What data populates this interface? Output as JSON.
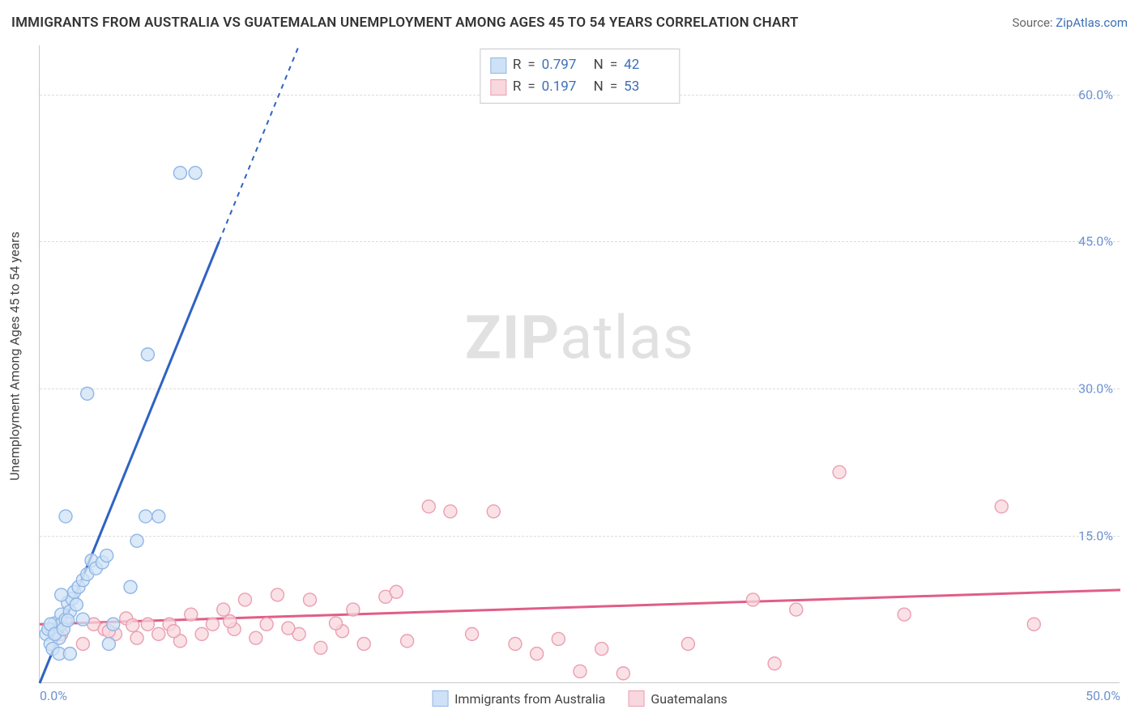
{
  "title": "IMMIGRANTS FROM AUSTRALIA VS GUATEMALAN UNEMPLOYMENT AMONG AGES 45 TO 54 YEARS CORRELATION CHART",
  "source_prefix": "Source: ",
  "source_link": "ZipAtlas.com",
  "yaxis_label": "Unemployment Among Ages 45 to 54 years",
  "watermark": {
    "bold": "ZIP",
    "rest": "atlas"
  },
  "chart": {
    "type": "scatter-regression",
    "xlim": [
      0,
      50
    ],
    "ylim": [
      0,
      65
    ],
    "x_ticks": [
      0.0,
      50.0
    ],
    "x_tick_labels": [
      "0.0%",
      "50.0%"
    ],
    "y_ticks": [
      15.0,
      30.0,
      45.0,
      60.0
    ],
    "y_tick_labels": [
      "15.0%",
      "30.0%",
      "45.0%",
      "60.0%"
    ],
    "grid_color": "#dcdcdc",
    "marker_radius": 8,
    "marker_stroke_width": 1.4,
    "reg_line_width": 3,
    "dash_pattern": "6,6",
    "background_color": "#ffffff",
    "series": [
      {
        "key": "A",
        "label": "Immigrants from Australia",
        "fill": "#cfe1f6",
        "stroke": "#8fb6e6",
        "line_color": "#2f62c4",
        "R": "0.797",
        "N": "42",
        "points": [
          [
            0.3,
            5.0
          ],
          [
            0.5,
            4.0
          ],
          [
            0.6,
            5.4
          ],
          [
            0.7,
            6.1
          ],
          [
            0.8,
            5.2
          ],
          [
            0.9,
            4.6
          ],
          [
            1.0,
            7.0
          ],
          [
            1.0,
            6.0
          ],
          [
            1.2,
            6.5
          ],
          [
            1.3,
            8.2
          ],
          [
            1.4,
            7.3
          ],
          [
            1.5,
            8.6
          ],
          [
            1.6,
            9.3
          ],
          [
            1.8,
            9.8
          ],
          [
            2.0,
            10.5
          ],
          [
            2.2,
            11.1
          ],
          [
            2.4,
            12.5
          ],
          [
            2.6,
            11.7
          ],
          [
            2.9,
            12.3
          ],
          [
            3.1,
            13.0
          ],
          [
            1.2,
            17.0
          ],
          [
            1.0,
            9.0
          ],
          [
            0.6,
            3.5
          ],
          [
            0.9,
            3.0
          ],
          [
            1.4,
            3.0
          ],
          [
            3.2,
            4.0
          ],
          [
            3.4,
            6.0
          ],
          [
            4.2,
            9.8
          ],
          [
            4.5,
            14.5
          ],
          [
            4.9,
            17.0
          ],
          [
            5.5,
            17.0
          ],
          [
            2.2,
            29.5
          ],
          [
            5.0,
            33.5
          ],
          [
            6.5,
            52.0
          ],
          [
            7.2,
            52.0
          ],
          [
            0.4,
            5.5
          ],
          [
            0.5,
            6.0
          ],
          [
            0.7,
            5.0
          ],
          [
            1.1,
            5.5
          ],
          [
            1.3,
            6.4
          ],
          [
            1.7,
            8.0
          ],
          [
            2.0,
            6.5
          ]
        ],
        "reg": {
          "x1": 0.0,
          "y1": 0.0,
          "x2": 8.3,
          "y2": 45.0,
          "dash_from_y": 45.0,
          "x3": 12.0,
          "y3": 65.0
        }
      },
      {
        "key": "B",
        "label": "Guatemalans",
        "fill": "#f8d7de",
        "stroke": "#ea9fb1",
        "line_color": "#e05e86",
        "R": "0.197",
        "N": "53",
        "points": [
          [
            1.0,
            5.0
          ],
          [
            2.0,
            4.0
          ],
          [
            2.5,
            6.0
          ],
          [
            3.0,
            5.5
          ],
          [
            3.5,
            5.0
          ],
          [
            4.0,
            6.6
          ],
          [
            4.5,
            4.6
          ],
          [
            5.0,
            6.0
          ],
          [
            5.5,
            5.0
          ],
          [
            6.0,
            6.0
          ],
          [
            6.5,
            4.3
          ],
          [
            7.0,
            7.0
          ],
          [
            7.5,
            5.0
          ],
          [
            8.0,
            6.0
          ],
          [
            8.5,
            7.5
          ],
          [
            9.0,
            5.5
          ],
          [
            9.5,
            8.5
          ],
          [
            10.0,
            4.6
          ],
          [
            10.5,
            6.0
          ],
          [
            11.0,
            9.0
          ],
          [
            12.0,
            5.0
          ],
          [
            12.5,
            8.5
          ],
          [
            13.0,
            3.6
          ],
          [
            14.0,
            5.3
          ],
          [
            14.5,
            7.5
          ],
          [
            15.0,
            4.0
          ],
          [
            16.0,
            8.8
          ],
          [
            16.5,
            9.3
          ],
          [
            17.0,
            4.3
          ],
          [
            18.0,
            18.0
          ],
          [
            19.0,
            17.5
          ],
          [
            20.0,
            5.0
          ],
          [
            21.0,
            17.5
          ],
          [
            22.0,
            4.0
          ],
          [
            23.0,
            3.0
          ],
          [
            24.0,
            4.5
          ],
          [
            25.0,
            1.2
          ],
          [
            26.0,
            3.5
          ],
          [
            27.0,
            1.0
          ],
          [
            30.0,
            4.0
          ],
          [
            33.0,
            8.5
          ],
          [
            34.0,
            2.0
          ],
          [
            35.0,
            7.5
          ],
          [
            37.0,
            21.5
          ],
          [
            40.0,
            7.0
          ],
          [
            44.5,
            18.0
          ],
          [
            46.0,
            6.0
          ],
          [
            3.2,
            5.3
          ],
          [
            4.3,
            5.9
          ],
          [
            6.2,
            5.3
          ],
          [
            8.8,
            6.3
          ],
          [
            11.5,
            5.6
          ],
          [
            13.7,
            6.1
          ]
        ],
        "reg": {
          "x1": 0.0,
          "y1": 6.0,
          "x2": 50.0,
          "y2": 9.5
        }
      }
    ],
    "stats_legend_labels": {
      "R": "R",
      "equals": "=",
      "N": "N"
    },
    "bottom_legend": true
  }
}
